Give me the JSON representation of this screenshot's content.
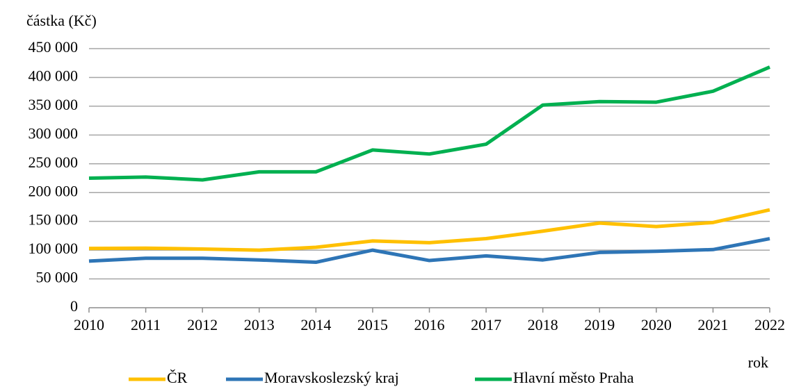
{
  "chart_data": {
    "type": "line",
    "y_label": "částka (Kč)",
    "x_label": "rok",
    "categories": [
      "2010",
      "2011",
      "2012",
      "2013",
      "2014",
      "2015",
      "2016",
      "2017",
      "2018",
      "2019",
      "2020",
      "2021",
      "2022"
    ],
    "series": [
      {
        "name": "ČR",
        "color": "#FFC000",
        "values": [
          103000,
          103500,
          102000,
          100000,
          105000,
          116000,
          113000,
          120000,
          133000,
          147000,
          141000,
          148000,
          170000
        ]
      },
      {
        "name": "Moravskoslezský kraj",
        "color": "#2E75B6",
        "values": [
          81000,
          86000,
          86000,
          83000,
          79000,
          100000,
          82000,
          90000,
          83000,
          96000,
          98000,
          101000,
          120000
        ]
      },
      {
        "name": "Hlavní město Praha",
        "color": "#00B050",
        "values": [
          225000,
          227000,
          222000,
          236000,
          236000,
          274000,
          267000,
          284000,
          352000,
          358000,
          357000,
          376000,
          418000
        ]
      }
    ],
    "ylim": [
      0,
      450000
    ],
    "yticks": [
      0,
      {
        "value": 50000,
        "label": "50 000"
      },
      {
        "value": 100000,
        "label": "100 000"
      },
      {
        "value": 150000,
        "label": "150 000"
      },
      {
        "value": 200000,
        "label": "200 000"
      },
      {
        "value": 250000,
        "label": "250 000"
      },
      {
        "value": 300000,
        "label": "300 000"
      },
      {
        "value": 350000,
        "label": "350 000"
      },
      {
        "value": 400000,
        "label": "400 000"
      },
      {
        "value": 450000,
        "label": "450 000"
      }
    ],
    "grid": true,
    "legend": "bottom"
  }
}
